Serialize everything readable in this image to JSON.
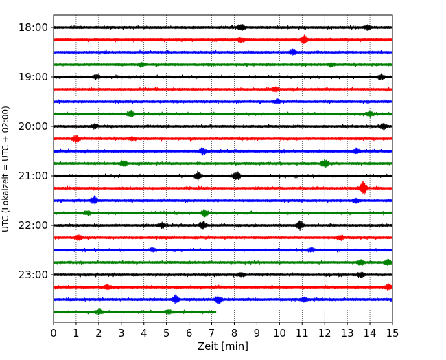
{
  "chart_data": {
    "type": "line",
    "title": "",
    "xlabel": "Zeit  [min]",
    "ylabel": "UTC (Lokalzeit = UTC + 02:00)",
    "xlim": [
      0,
      15
    ],
    "x_ticks": [
      "0",
      "1",
      "2",
      "3",
      "4",
      "5",
      "6",
      "7",
      "8",
      "9",
      "10",
      "11",
      "12",
      "13",
      "14",
      "15"
    ],
    "y_ticks": [
      {
        "label": "18:00",
        "row": 0
      },
      {
        "label": "19:00",
        "row": 4
      },
      {
        "label": "20:00",
        "row": 8
      },
      {
        "label": "21:00",
        "row": 12
      },
      {
        "label": "22:00",
        "row": 16
      },
      {
        "label": "23:00",
        "row": 20
      }
    ],
    "minutes_per_trace": 15,
    "vertical_grid": "dotted",
    "trace_colors": [
      "#000000",
      "#ff0000",
      "#0000ff",
      "#008000"
    ],
    "traces": [
      {
        "start": "18:00",
        "end_min": 15,
        "events": [
          {
            "t": 8.3,
            "amp": 5
          },
          {
            "t": 13.9,
            "amp": 3
          }
        ]
      },
      {
        "start": "18:15",
        "end_min": 15,
        "events": [
          {
            "t": 11.1,
            "amp": 6
          },
          {
            "t": 8.3,
            "amp": 3
          }
        ]
      },
      {
        "start": "18:30",
        "end_min": 15,
        "events": [
          {
            "t": 10.6,
            "amp": 4
          }
        ]
      },
      {
        "start": "18:45",
        "end_min": 15,
        "events": [
          {
            "t": 3.9,
            "amp": 3
          },
          {
            "t": 12.3,
            "amp": 3
          }
        ]
      },
      {
        "start": "19:00",
        "end_min": 15,
        "events": [
          {
            "t": 1.9,
            "amp": 3
          },
          {
            "t": 14.5,
            "amp": 4
          }
        ]
      },
      {
        "start": "19:15",
        "end_min": 15,
        "events": [
          {
            "t": 9.8,
            "amp": 3
          }
        ]
      },
      {
        "start": "19:30",
        "end_min": 15,
        "events": [
          {
            "t": 9.9,
            "amp": 3
          }
        ]
      },
      {
        "start": "19:45",
        "end_min": 15,
        "events": [
          {
            "t": 3.4,
            "amp": 5
          },
          {
            "t": 14.0,
            "amp": 4
          }
        ]
      },
      {
        "start": "20:00",
        "end_min": 15,
        "events": [
          {
            "t": 1.8,
            "amp": 3
          },
          {
            "t": 14.6,
            "amp": 4
          }
        ]
      },
      {
        "start": "20:15",
        "end_min": 15,
        "events": [
          {
            "t": 1.0,
            "amp": 5
          },
          {
            "t": 3.5,
            "amp": 3
          }
        ]
      },
      {
        "start": "20:30",
        "end_min": 15,
        "events": [
          {
            "t": 6.6,
            "amp": 5
          },
          {
            "t": 13.4,
            "amp": 4
          }
        ]
      },
      {
        "start": "20:45",
        "end_min": 15,
        "events": [
          {
            "t": 3.1,
            "amp": 4
          },
          {
            "t": 12.0,
            "amp": 6
          }
        ]
      },
      {
        "start": "21:00",
        "end_min": 15,
        "events": [
          {
            "t": 6.4,
            "amp": 6
          },
          {
            "t": 8.1,
            "amp": 7
          }
        ]
      },
      {
        "start": "21:15",
        "end_min": 15,
        "events": [
          {
            "t": 13.7,
            "amp": 11
          }
        ]
      },
      {
        "start": "21:30",
        "end_min": 15,
        "events": [
          {
            "t": 1.8,
            "amp": 6
          },
          {
            "t": 13.4,
            "amp": 3
          }
        ]
      },
      {
        "start": "21:45",
        "end_min": 15,
        "events": [
          {
            "t": 6.7,
            "amp": 5
          },
          {
            "t": 1.5,
            "amp": 3
          }
        ]
      },
      {
        "start": "22:00",
        "end_min": 15,
        "events": [
          {
            "t": 10.9,
            "amp": 7
          },
          {
            "t": 6.6,
            "amp": 6
          },
          {
            "t": 4.8,
            "amp": 4
          }
        ]
      },
      {
        "start": "22:15",
        "end_min": 15,
        "events": [
          {
            "t": 1.1,
            "amp": 4
          },
          {
            "t": 12.7,
            "amp": 4
          }
        ]
      },
      {
        "start": "22:30",
        "end_min": 15,
        "events": [
          {
            "t": 4.4,
            "amp": 3
          },
          {
            "t": 11.4,
            "amp": 3
          }
        ]
      },
      {
        "start": "22:45",
        "end_min": 15,
        "events": [
          {
            "t": 13.6,
            "amp": 4
          },
          {
            "t": 14.8,
            "amp": 4
          }
        ]
      },
      {
        "start": "23:00",
        "end_min": 15,
        "events": [
          {
            "t": 13.6,
            "amp": 4
          },
          {
            "t": 8.3,
            "amp": 3
          }
        ]
      },
      {
        "start": "23:15",
        "end_min": 15,
        "events": [
          {
            "t": 2.4,
            "amp": 3
          },
          {
            "t": 14.8,
            "amp": 4
          }
        ]
      },
      {
        "start": "23:30",
        "end_min": 15,
        "events": [
          {
            "t": 5.4,
            "amp": 6
          },
          {
            "t": 7.3,
            "amp": 5
          },
          {
            "t": 11.1,
            "amp": 3
          }
        ]
      },
      {
        "start": "23:45",
        "end_min": 7.2,
        "events": [
          {
            "t": 2.0,
            "amp": 4
          },
          {
            "t": 5.1,
            "amp": 3
          }
        ]
      }
    ]
  }
}
